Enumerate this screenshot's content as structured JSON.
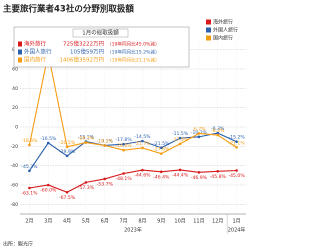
{
  "chart_data": {
    "type": "line",
    "title": "主要旅行業者43社の分野別取扱額",
    "categories": [
      "2月",
      "3月",
      "4月",
      "5月",
      "6月",
      "7月",
      "8月",
      "9月",
      "10月",
      "11月",
      "12月",
      "1月"
    ],
    "year_labels": [
      "2023年",
      "2024年"
    ],
    "series": [
      {
        "name": "海外旅行",
        "color": "#d7191c",
        "values": [
          -63.1,
          -60.0,
          -67.5,
          -57.3,
          -53.7,
          -48.1,
          -44.6,
          -46.4,
          -44.4,
          -46.9,
          -45.8,
          -45.0
        ],
        "value_labels": [
          "-63.1%",
          "-60.0%",
          "-67.5%",
          "-57.3%",
          "-53.7%",
          "-48.1%",
          "-44.6%",
          "-46.4%",
          "-44.4%",
          "-46.9%",
          "-45.8%",
          "-45.0%"
        ]
      },
      {
        "name": "外国人旅行",
        "color": "#2b5fad",
        "values": [
          -45.3,
          -16.5,
          -29.9,
          -15.1,
          -19.1,
          -17.8,
          -14.5,
          -21.5,
          -11.5,
          -10.2,
          -6.3,
          -15.2
        ],
        "value_labels": [
          "-45.3%",
          "-16.5%",
          "-29.9%",
          "-15.1%",
          "-19.1%",
          "-17.8%",
          "-14.5%",
          "-21.5%",
          "-11.5%",
          "-10.2%",
          "-6.3%",
          "-15.2%"
        ]
      },
      {
        "name": "国内旅行",
        "color": "#f39c12",
        "values": [
          -18.6,
          75.7,
          -20.5,
          -16.1,
          -19.1,
          -24.0,
          -21.7,
          -27.6,
          -17.5,
          -6.7,
          -8.3,
          -21.1
        ],
        "value_labels": [
          "-18.6%",
          "75.7%",
          "-20.5%",
          "-16.1%",
          "-19.1%",
          "-24.0%",
          "-21.7%",
          "-27.6%",
          "-17.5%",
          "-6.7%",
          "-8.3%",
          "-21.1%"
        ]
      }
    ],
    "ylim": [
      -90,
      90
    ],
    "yticks": [
      -80,
      -60,
      -40,
      -20,
      0,
      20,
      40,
      60,
      80
    ],
    "grid": true,
    "summary": {
      "title": "1月の総取扱額",
      "rows": [
        {
          "name": "海外旅行",
          "amount": "725億3222万円",
          "note": "（19年同月比45.0%減）"
        },
        {
          "name": "外国人旅行",
          "amount": "105億59万円",
          "note": "（19年同月比15.2%減）"
        },
        {
          "name": "国内旅行",
          "amount": "1406億3592万円",
          "note": "（19年同月比21.1%減）"
        }
      ]
    },
    "source": "出所：観光庁"
  }
}
